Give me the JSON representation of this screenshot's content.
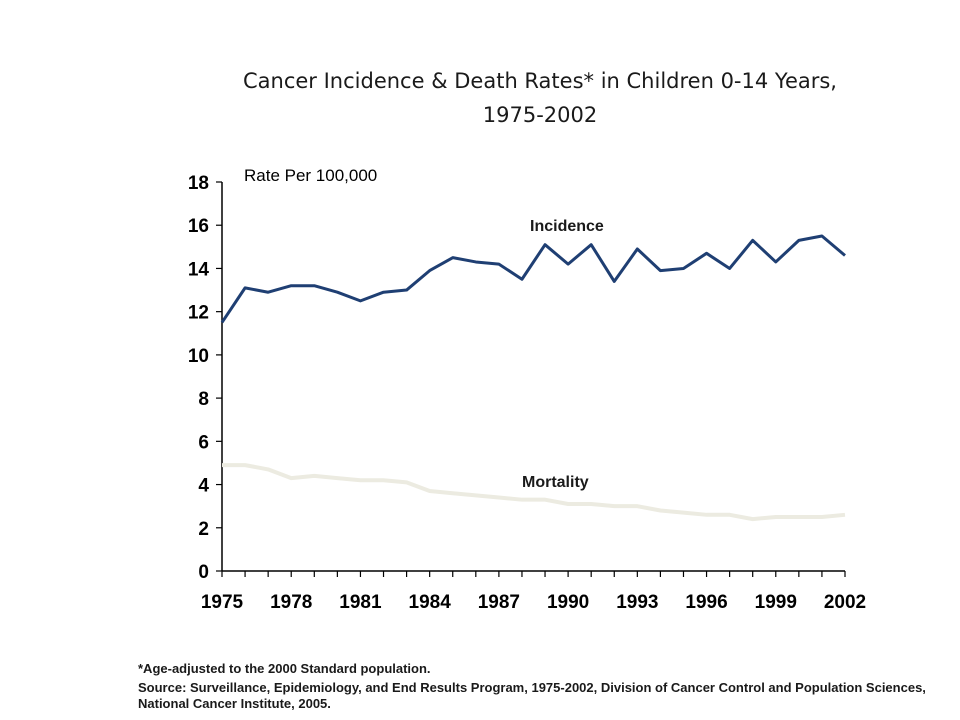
{
  "title": {
    "line1": "Cancer Incidence & Death Rates* in Children 0-14 Years,",
    "line2": "1975-2002"
  },
  "chart_data": {
    "type": "line",
    "title": "Cancer Incidence & Death Rates* in Children 0-14 Years, 1975-2002",
    "ylabel": "Rate Per 100,000",
    "xlabel": "",
    "ylim": [
      0,
      18
    ],
    "yticks": [
      0,
      2,
      4,
      6,
      8,
      10,
      12,
      14,
      16,
      18
    ],
    "xlim": [
      1975,
      2002
    ],
    "xticks": [
      1975,
      1978,
      1981,
      1984,
      1987,
      1990,
      1993,
      1996,
      1999,
      2002
    ],
    "grid": false,
    "x": [
      1975,
      1976,
      1977,
      1978,
      1979,
      1980,
      1981,
      1982,
      1983,
      1984,
      1985,
      1986,
      1987,
      1988,
      1989,
      1990,
      1991,
      1992,
      1993,
      1994,
      1995,
      1996,
      1997,
      1998,
      1999,
      2000,
      2001,
      2002
    ],
    "series": [
      {
        "name": "Incidence",
        "color": "#1f3f73",
        "values": [
          11.5,
          13.1,
          12.9,
          13.2,
          13.2,
          12.9,
          12.5,
          12.9,
          13.0,
          13.9,
          14.5,
          14.3,
          14.2,
          13.5,
          15.1,
          14.2,
          15.1,
          13.4,
          14.9,
          13.9,
          14.0,
          14.7,
          14.0,
          15.3,
          14.3,
          15.3,
          15.5,
          14.6
        ]
      },
      {
        "name": "Mortality",
        "color": "#ecebe1",
        "values": [
          4.9,
          4.9,
          4.7,
          4.3,
          4.4,
          4.3,
          4.2,
          4.2,
          4.1,
          3.7,
          3.6,
          3.5,
          3.4,
          3.3,
          3.3,
          3.1,
          3.1,
          3.0,
          3.0,
          2.8,
          2.7,
          2.6,
          2.6,
          2.4,
          2.5,
          2.5,
          2.5,
          2.6
        ]
      }
    ]
  },
  "footnote": {
    "line1": "*Age-adjusted to the 2000 Standard population.",
    "source": "Source: Surveillance, Epidemiology, and End Results Program, 1975-2002, Division of Cancer Control and Population Sciences, National Cancer Institute, 2005."
  }
}
